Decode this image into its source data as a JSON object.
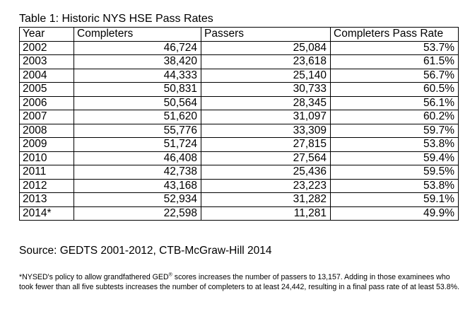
{
  "title": "Table 1: Historic NYS HSE Pass Rates",
  "table": {
    "columns": [
      "Year",
      "Completers",
      "Passers",
      "Completers Pass Rate"
    ],
    "rows": [
      {
        "year": "2002",
        "completers": "46,724",
        "passers": "25,084",
        "rate": "53.7%"
      },
      {
        "year": "2003",
        "completers": "38,420",
        "passers": "23,618",
        "rate": "61.5%"
      },
      {
        "year": "2004",
        "completers": "44,333",
        "passers": "25,140",
        "rate": "56.7%"
      },
      {
        "year": "2005",
        "completers": "50,831",
        "passers": "30,733",
        "rate": "60.5%"
      },
      {
        "year": "2006",
        "completers": "50,564",
        "passers": "28,345",
        "rate": "56.1%"
      },
      {
        "year": "2007",
        "completers": "51,620",
        "passers": "31,097",
        "rate": "60.2%"
      },
      {
        "year": "2008",
        "completers": "55,776",
        "passers": "33,309",
        "rate": "59.7%"
      },
      {
        "year": "2009",
        "completers": "51,724",
        "passers": "27,815",
        "rate": "53.8%"
      },
      {
        "year": "2010",
        "completers": "46,408",
        "passers": "27,564",
        "rate": "59.4%"
      },
      {
        "year": "2011",
        "completers": "42,738",
        "passers": "25,436",
        "rate": "59.5%"
      },
      {
        "year": "2012",
        "completers": "43,168",
        "passers": "23,223",
        "rate": "53.8%"
      },
      {
        "year": "2013",
        "completers": "52,934",
        "passers": "31,282",
        "rate": "59.1%"
      },
      {
        "year": "2014*",
        "completers": "22,598",
        "passers": "11,281",
        "rate": "49.9%"
      }
    ]
  },
  "source": "Source: GEDTS 2001-2012, CTB-McGraw-Hill 2014",
  "footnote": {
    "before_sup": "*NYSED's policy to allow grandfathered GED",
    "sup": "®",
    "after_sup": " scores increases the number of passers to 13,157. Adding in those examinees who took fewer than all five subtests increases the number of completers to at least 24,442, resulting in a final pass rate of at least 53.8%."
  }
}
